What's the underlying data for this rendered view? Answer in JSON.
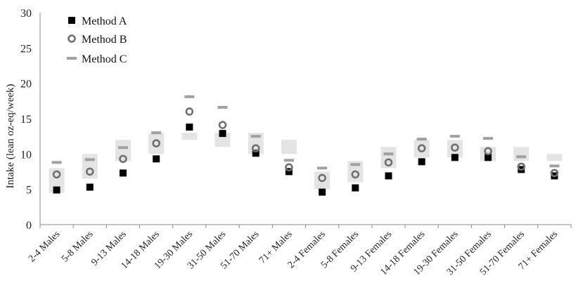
{
  "chart_data": {
    "type": "scatter",
    "ylabel": "Intake (lean oz-eq/week)",
    "ylim": [
      0,
      30
    ],
    "yticks": [
      0,
      5,
      10,
      15,
      20,
      25,
      30
    ],
    "grid": false,
    "legend_position": "top-left",
    "categories": [
      "2-4 Males",
      "5-8 Males",
      "9-13 Males",
      "14-18 Males",
      "19-30 Males",
      "31-50 Males",
      "51-70 Males",
      "71+ Males",
      "2-4 Females",
      "5-8 Females",
      "9-13 Females",
      "14-18 Females",
      "19-30 Females",
      "31-50 Females",
      "51-70 Females",
      "71+ Females"
    ],
    "series": [
      {
        "name": "Method A",
        "marker": "filled-square",
        "color": "#000000",
        "values": [
          4.9,
          5.3,
          7.3,
          9.3,
          13.8,
          12.9,
          10.1,
          7.5,
          4.6,
          5.2,
          6.9,
          8.9,
          9.5,
          9.5,
          7.8,
          6.9
        ]
      },
      {
        "name": "Method B",
        "marker": "open-circle",
        "color": "#707070",
        "values": [
          7.1,
          7.5,
          9.3,
          11.5,
          16.0,
          14.1,
          10.8,
          8.1,
          6.6,
          7.1,
          8.8,
          10.8,
          10.9,
          10.4,
          8.2,
          7.3
        ]
      },
      {
        "name": "Method C",
        "marker": "dash",
        "color": "#a0a0a0",
        "values": [
          8.8,
          9.2,
          10.9,
          13.0,
          18.1,
          16.6,
          12.5,
          9.1,
          8.0,
          8.5,
          10.0,
          12.1,
          12.5,
          12.2,
          9.6,
          8.3
        ]
      }
    ],
    "ranges": {
      "color": "#e4e4e4",
      "low": [
        4.5,
        6.5,
        9.0,
        10.0,
        12.0,
        11.0,
        10.0,
        10.0,
        5.0,
        6.0,
        8.0,
        9.5,
        9.5,
        9.0,
        9.0,
        9.0
      ],
      "high": [
        8.0,
        10.0,
        12.0,
        13.0,
        13.0,
        13.0,
        13.0,
        12.0,
        7.5,
        9.0,
        11.0,
        12.0,
        12.0,
        11.0,
        11.0,
        10.0
      ]
    }
  }
}
